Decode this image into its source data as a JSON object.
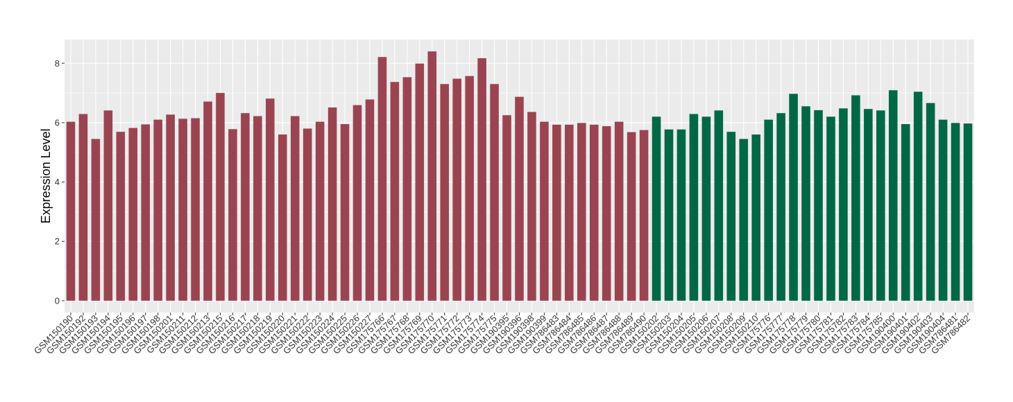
{
  "chart_data": {
    "type": "bar",
    "ylabel": "Expression Level",
    "xlabel": "",
    "title": "",
    "ylim": [
      -0.4,
      8.8
    ],
    "yticks": [
      0,
      2,
      4,
      6,
      8
    ],
    "grid": true,
    "legend": "none",
    "colors": {
      "group1": "#9b4451",
      "group2": "#006846",
      "panel": "#ebebeb",
      "grid": "#ffffff"
    },
    "categories": [
      "GSM150190",
      "GSM150192",
      "GSM150193",
      "GSM150194",
      "GSM150195",
      "GSM150196",
      "GSM150197",
      "GSM150198",
      "GSM150201",
      "GSM150211",
      "GSM150212",
      "GSM150213",
      "GSM150215",
      "GSM150216",
      "GSM150217",
      "GSM150218",
      "GSM150219",
      "GSM150220",
      "GSM150221",
      "GSM150222",
      "GSM150223",
      "GSM150224",
      "GSM150225",
      "GSM150226",
      "GSM150227",
      "GSM175766",
      "GSM175767",
      "GSM175768",
      "GSM175769",
      "GSM175770",
      "GSM175771",
      "GSM175772",
      "GSM175773",
      "GSM175774",
      "GSM175775",
      "GSM190395",
      "GSM190396",
      "GSM190398",
      "GSM190399",
      "GSM786483",
      "GSM786484",
      "GSM786485",
      "GSM786486",
      "GSM786487",
      "GSM786488",
      "GSM786489",
      "GSM786490",
      "GSM150202",
      "GSM150203",
      "GSM150204",
      "GSM150205",
      "GSM150206",
      "GSM150207",
      "GSM150208",
      "GSM150209",
      "GSM150210",
      "GSM175776",
      "GSM175777",
      "GSM175778",
      "GSM175779",
      "GSM175780",
      "GSM175781",
      "GSM175782",
      "GSM175783",
      "GSM175784",
      "GSM175785",
      "GSM190400",
      "GSM190401",
      "GSM190402",
      "GSM190403",
      "GSM190404",
      "GSM786481",
      "GSM786482"
    ],
    "values": [
      6.03,
      6.29,
      5.45,
      6.41,
      5.69,
      5.82,
      5.94,
      6.1,
      6.27,
      6.13,
      6.15,
      6.71,
      7.0,
      5.78,
      6.32,
      6.22,
      6.81,
      5.6,
      6.22,
      5.8,
      6.03,
      6.51,
      5.95,
      6.59,
      6.78,
      8.21,
      7.37,
      7.53,
      7.99,
      8.4,
      7.3,
      7.48,
      7.57,
      8.17,
      7.3,
      6.25,
      6.87,
      6.36,
      6.03,
      5.93,
      5.93,
      5.99,
      5.93,
      5.88,
      6.03,
      5.68,
      5.75,
      6.2,
      5.77,
      5.77,
      6.29,
      6.2,
      6.41,
      5.69,
      5.45,
      5.6,
      6.1,
      6.32,
      6.97,
      6.55,
      6.42,
      6.2,
      6.48,
      6.92,
      6.46,
      6.41,
      7.09,
      5.95,
      7.04,
      6.66,
      6.1,
      5.99,
      5.97
    ],
    "groups": [
      1,
      1,
      1,
      1,
      1,
      1,
      1,
      1,
      1,
      1,
      1,
      1,
      1,
      1,
      1,
      1,
      1,
      1,
      1,
      1,
      1,
      1,
      1,
      1,
      1,
      1,
      1,
      1,
      1,
      1,
      1,
      1,
      1,
      1,
      1,
      1,
      1,
      1,
      1,
      1,
      1,
      1,
      1,
      1,
      1,
      1,
      1,
      2,
      2,
      2,
      2,
      2,
      2,
      2,
      2,
      2,
      2,
      2,
      2,
      2,
      2,
      2,
      2,
      2,
      2,
      2,
      2,
      2,
      2,
      2,
      2,
      2,
      2
    ]
  }
}
